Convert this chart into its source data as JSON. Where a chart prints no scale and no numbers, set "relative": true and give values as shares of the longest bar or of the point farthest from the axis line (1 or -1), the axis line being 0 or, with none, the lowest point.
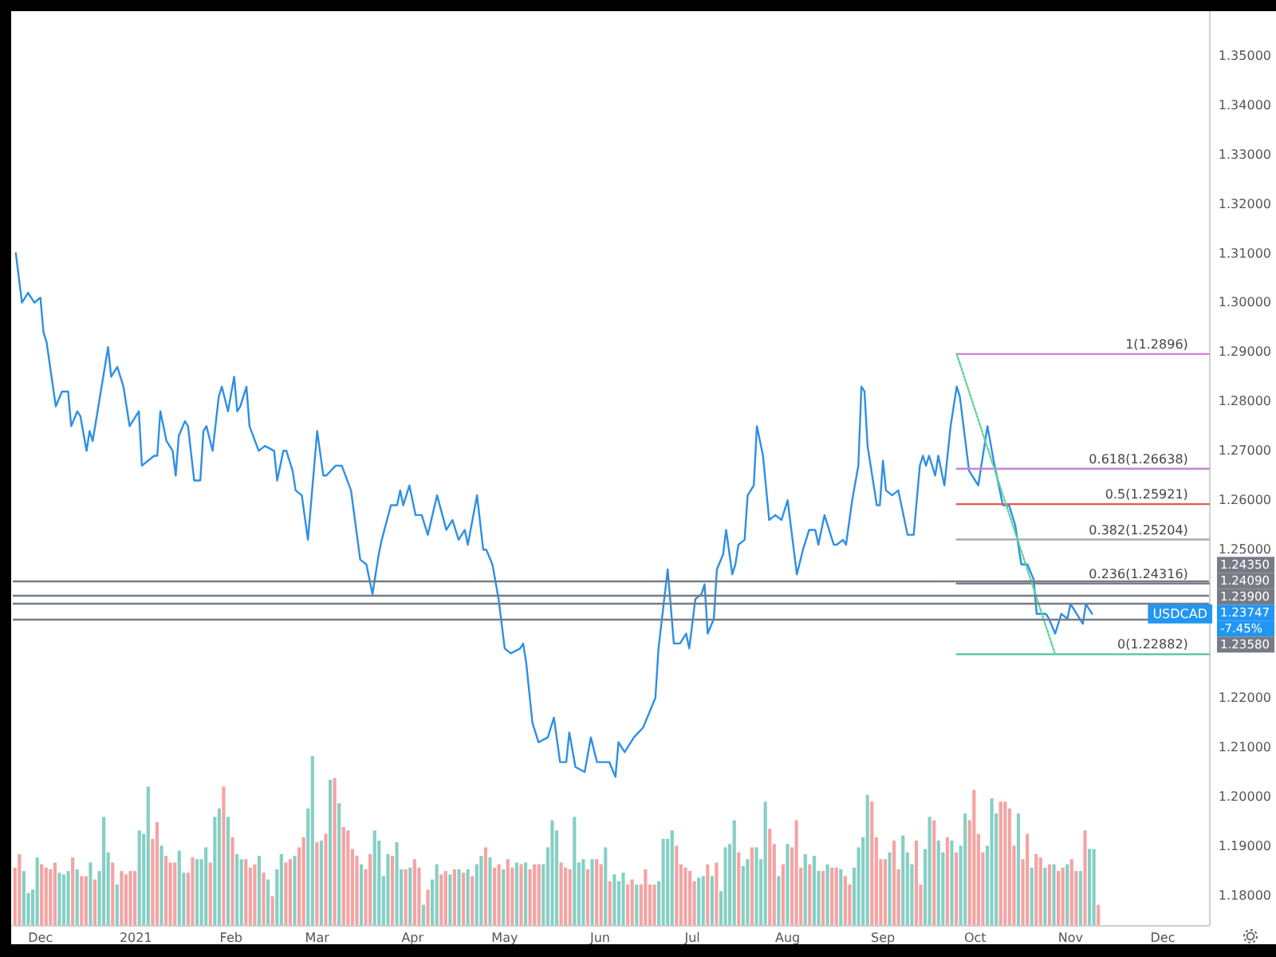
{
  "chart_data": [
    {
      "type": "line",
      "xlim": [
        "2020-11-22",
        "2021-12-16"
      ],
      "ylim": [
        1.174,
        1.359
      ],
      "xticks": [
        {
          "value": "2020-12-01",
          "label": "Dec"
        },
        {
          "value": "2021-01-01",
          "label": "2021"
        },
        {
          "value": "2021-02-01",
          "label": "Feb"
        },
        {
          "value": "2021-03-01",
          "label": "Mar"
        },
        {
          "value": "2021-04-01",
          "label": "Apr"
        },
        {
          "value": "2021-05-01",
          "label": "May"
        },
        {
          "value": "2021-06-01",
          "label": "Jun"
        },
        {
          "value": "2021-07-01",
          "label": "Jul"
        },
        {
          "value": "2021-08-01",
          "label": "Aug"
        },
        {
          "value": "2021-09-01",
          "label": "Sep"
        },
        {
          "value": "2021-10-01",
          "label": "Oct"
        },
        {
          "value": "2021-11-01",
          "label": "Nov"
        },
        {
          "value": "2021-12-01",
          "label": "Dec"
        }
      ],
      "yticks": [
        {
          "value": 1.18,
          "label": "1.18000"
        },
        {
          "value": 1.19,
          "label": "1.19000"
        },
        {
          "value": 1.2,
          "label": "1.20000"
        },
        {
          "value": 1.21,
          "label": "1.21000"
        },
        {
          "value": 1.22,
          "label": "1.22000"
        },
        {
          "value": 1.25,
          "label": "1.25000"
        },
        {
          "value": 1.26,
          "label": "1.26000"
        },
        {
          "value": 1.27,
          "label": "1.27000"
        },
        {
          "value": 1.28,
          "label": "1.28000"
        },
        {
          "value": 1.29,
          "label": "1.29000"
        },
        {
          "value": 1.3,
          "label": "1.30000"
        },
        {
          "value": 1.31,
          "label": "1.31000"
        },
        {
          "value": 1.32,
          "label": "1.32000"
        },
        {
          "value": 1.33,
          "label": "1.33000"
        },
        {
          "value": 1.34,
          "label": "1.34000"
        },
        {
          "value": 1.35,
          "label": "1.35000"
        }
      ],
      "marker": "none",
      "line_style": "solid",
      "series": [
        {
          "color": "#2e8fe6",
          "x": [
            "2020-11-23",
            "2020-11-25",
            "2020-11-27",
            "2020-11-29",
            "2020-12-01",
            "2020-12-02",
            "2020-12-03",
            "2020-12-06",
            "2020-12-08",
            "2020-12-10",
            "2020-12-11",
            "2020-12-13",
            "2020-12-14",
            "2020-12-16",
            "2020-12-17",
            "2020-12-18",
            "2020-12-23",
            "2020-12-24",
            "2020-12-26",
            "2020-12-28",
            "2020-12-30",
            "2021-01-02",
            "2021-01-03",
            "2021-01-07",
            "2021-01-08",
            "2021-01-09",
            "2021-01-11",
            "2021-01-13",
            "2021-01-14",
            "2021-01-15",
            "2021-01-17",
            "2021-01-18",
            "2021-01-20",
            "2021-01-22",
            "2021-01-23",
            "2021-01-24",
            "2021-01-26",
            "2021-01-28",
            "2021-01-29",
            "2021-01-31",
            "2021-02-02",
            "2021-02-03",
            "2021-02-04",
            "2021-02-06",
            "2021-02-07",
            "2021-02-10",
            "2021-02-12",
            "2021-02-15",
            "2021-02-16",
            "2021-02-18",
            "2021-02-19",
            "2021-02-21",
            "2021-02-22",
            "2021-02-24",
            "2021-02-26",
            "2021-03-01",
            "2021-03-03",
            "2021-03-04",
            "2021-03-07",
            "2021-03-09",
            "2021-03-12",
            "2021-03-15",
            "2021-03-17",
            "2021-03-19",
            "2021-03-21",
            "2021-03-22",
            "2021-03-25",
            "2021-03-27",
            "2021-03-28",
            "2021-03-29",
            "2021-03-31",
            "2021-04-02",
            "2021-04-04",
            "2021-04-06",
            "2021-04-09",
            "2021-04-12",
            "2021-04-14",
            "2021-04-16",
            "2021-04-18",
            "2021-04-19",
            "2021-04-22",
            "2021-04-24",
            "2021-04-25",
            "2021-04-27",
            "2021-04-29",
            "2021-05-01",
            "2021-05-03",
            "2021-05-06",
            "2021-05-07",
            "2021-05-08",
            "2021-05-10",
            "2021-05-12",
            "2021-05-15",
            "2021-05-17",
            "2021-05-19",
            "2021-05-21",
            "2021-05-22",
            "2021-05-24",
            "2021-05-27",
            "2021-05-29",
            "2021-05-31",
            "2021-06-03",
            "2021-06-04",
            "2021-06-06",
            "2021-06-07",
            "2021-06-09",
            "2021-06-12",
            "2021-06-15",
            "2021-06-19",
            "2021-06-20",
            "2021-06-23",
            "2021-06-25",
            "2021-06-27",
            "2021-06-29",
            "2021-06-30",
            "2021-07-02",
            "2021-07-04",
            "2021-07-05",
            "2021-07-06",
            "2021-07-08",
            "2021-07-09",
            "2021-07-11",
            "2021-07-12",
            "2021-07-14",
            "2021-07-15",
            "2021-07-16",
            "2021-07-18",
            "2021-07-19",
            "2021-07-21",
            "2021-07-22",
            "2021-07-24",
            "2021-07-26",
            "2021-07-28",
            "2021-07-30",
            "2021-08-01",
            "2021-08-04",
            "2021-08-06",
            "2021-08-08",
            "2021-08-10",
            "2021-08-11",
            "2021-08-13",
            "2021-08-16",
            "2021-08-17",
            "2021-08-19",
            "2021-08-20",
            "2021-08-22",
            "2021-08-24",
            "2021-08-25",
            "2021-08-26",
            "2021-08-27",
            "2021-08-30",
            "2021-08-31",
            "2021-09-01",
            "2021-09-02",
            "2021-09-04",
            "2021-09-06",
            "2021-09-09",
            "2021-09-11",
            "2021-09-13",
            "2021-09-14",
            "2021-09-15",
            "2021-09-16",
            "2021-09-18",
            "2021-09-19",
            "2021-09-21",
            "2021-09-23",
            "2021-09-25",
            "2021-09-26",
            "2021-09-29",
            "2021-09-30",
            "2021-10-02",
            "2021-10-05",
            "2021-10-07",
            "2021-10-10",
            "2021-10-12",
            "2021-10-14",
            "2021-10-16",
            "2021-10-18",
            "2021-10-20",
            "2021-10-21",
            "2021-10-24",
            "2021-10-25",
            "2021-10-27",
            "2021-10-29",
            "2021-10-31",
            "2021-11-01",
            "2021-11-03",
            "2021-11-05",
            "2021-11-06",
            "2021-11-08"
          ],
          "values": [
            1.31,
            1.3,
            1.302,
            1.3,
            1.301,
            1.294,
            1.292,
            1.279,
            1.282,
            1.282,
            1.275,
            1.278,
            1.277,
            1.27,
            1.274,
            1.272,
            1.291,
            1.285,
            1.287,
            1.283,
            1.275,
            1.278,
            1.267,
            1.269,
            1.269,
            1.278,
            1.272,
            1.27,
            1.265,
            1.273,
            1.276,
            1.275,
            1.264,
            1.264,
            1.274,
            1.275,
            1.27,
            1.281,
            1.283,
            1.278,
            1.285,
            1.278,
            1.279,
            1.283,
            1.275,
            1.27,
            1.271,
            1.27,
            1.264,
            1.27,
            1.27,
            1.266,
            1.262,
            1.261,
            1.252,
            1.274,
            1.265,
            1.265,
            1.267,
            1.267,
            1.262,
            1.248,
            1.247,
            1.241,
            1.249,
            1.252,
            1.259,
            1.259,
            1.262,
            1.259,
            1.263,
            1.257,
            1.257,
            1.253,
            1.261,
            1.254,
            1.256,
            1.252,
            1.254,
            1.251,
            1.261,
            1.25,
            1.25,
            1.247,
            1.24,
            1.23,
            1.229,
            1.23,
            1.231,
            1.227,
            1.215,
            1.211,
            1.212,
            1.216,
            1.207,
            1.207,
            1.213,
            1.206,
            1.205,
            1.212,
            1.207,
            1.207,
            1.207,
            1.204,
            1.211,
            1.209,
            1.212,
            1.214,
            1.22,
            1.23,
            1.246,
            1.231,
            1.231,
            1.233,
            1.23,
            1.24,
            1.241,
            1.243,
            1.233,
            1.236,
            1.246,
            1.249,
            1.254,
            1.245,
            1.247,
            1.251,
            1.252,
            1.261,
            1.263,
            1.275,
            1.269,
            1.256,
            1.257,
            1.256,
            1.26,
            1.245,
            1.25,
            1.254,
            1.254,
            1.251,
            1.257,
            1.251,
            1.251,
            1.252,
            1.251,
            1.26,
            1.267,
            1.283,
            1.282,
            1.271,
            1.259,
            1.259,
            1.268,
            1.262,
            1.261,
            1.262,
            1.253,
            1.253,
            1.267,
            1.269,
            1.267,
            1.269,
            1.265,
            1.269,
            1.263,
            1.275,
            1.283,
            1.281,
            1.266,
            1.265,
            1.263,
            1.275,
            1.268,
            1.259,
            1.259,
            1.255,
            1.247,
            1.247,
            1.244,
            1.237,
            1.237,
            1.236,
            1.233,
            1.237,
            1.236,
            1.239,
            1.237,
            1.235,
            1.239,
            1.237
          ]
        },
        {
          "name": "1(1.2896)",
          "color": "#d67fde",
          "x": [
            "2021-09-25",
            "2021-12-16"
          ],
          "values": [
            1.2896,
            1.2896
          ]
        },
        {
          "name": "0.618(1.26638)",
          "color": "#c585d6",
          "x": [
            "2021-09-25",
            "2021-12-16"
          ],
          "values": [
            1.26638,
            1.26638
          ]
        },
        {
          "name": "0.5(1.25921)",
          "color": "#f05454",
          "x": [
            "2021-09-25",
            "2021-12-16"
          ],
          "values": [
            1.25921,
            1.25921
          ]
        },
        {
          "name": "0.382(1.25204)",
          "color": "#a9a9b6",
          "x": [
            "2021-09-25",
            "2021-12-16"
          ],
          "values": [
            1.25204,
            1.25204
          ]
        },
        {
          "name": "0.236(1.24316)",
          "color": "#6f7380",
          "x": [
            "2021-09-25",
            "2021-12-16"
          ],
          "values": [
            1.24316,
            1.24316
          ]
        },
        {
          "name": "0(1.22882)",
          "color": "#50c59a",
          "x": [
            "2021-09-25",
            "2021-12-16"
          ],
          "values": [
            1.22882,
            1.22882
          ]
        },
        {
          "color": "#5fd39e",
          "line_style": "dotted",
          "x": [
            "2021-09-25",
            "2021-10-27"
          ],
          "values": [
            1.2896,
            1.22882
          ]
        }
      ],
      "ref_lines": [
        {
          "axis": "y",
          "value": 1.2435,
          "label": "1.24350",
          "color": "#787b86"
        },
        {
          "axis": "y",
          "value": 1.2409,
          "label": "1.24090",
          "color": "#787b86"
        },
        {
          "axis": "y",
          "value": 1.239,
          "label": "1.23900",
          "color": "#787b86"
        },
        {
          "axis": "y",
          "value": 1.2358,
          "label": "1.23580",
          "color": "#787b86"
        }
      ],
      "annotations": [
        "USDCAD",
        "1.23747",
        "-7.45%"
      ]
    },
    {
      "type": "bar",
      "relative": true,
      "tick_labels": false,
      "categories": [
        null,
        null,
        null,
        null,
        null,
        null,
        null,
        null,
        null,
        null,
        null,
        null,
        null,
        null,
        null,
        null,
        null,
        null,
        null,
        null,
        null,
        null,
        null,
        null,
        null,
        null,
        null,
        null,
        null,
        null,
        null,
        null,
        null,
        null,
        null,
        null,
        null,
        null,
        null,
        null,
        null,
        null,
        null,
        null,
        null,
        null,
        null,
        null,
        null,
        null,
        null,
        null,
        null,
        null,
        null,
        null,
        null,
        null,
        null,
        null,
        null,
        null,
        null,
        null,
        null,
        null,
        null,
        null,
        null,
        null,
        null,
        null,
        null,
        null,
        null,
        null,
        null,
        null,
        null,
        null,
        null,
        null,
        null,
        null,
        null,
        null,
        null,
        null,
        null,
        null,
        null,
        null,
        null,
        null,
        null,
        null,
        null,
        null,
        null,
        null,
        null,
        null,
        null,
        null,
        null,
        null,
        null,
        null,
        null,
        null,
        null,
        null,
        null,
        null,
        null,
        null,
        null,
        null,
        null,
        null,
        null,
        null,
        null,
        null,
        null,
        null,
        null,
        null,
        null,
        null,
        null,
        null,
        null,
        null,
        null,
        null,
        null,
        null,
        null,
        null,
        null,
        null,
        null,
        null,
        null,
        null,
        null,
        null,
        null,
        null,
        null,
        null,
        null,
        null,
        null,
        null,
        null,
        null,
        null,
        null,
        null,
        null,
        null,
        null,
        null,
        null,
        null,
        null,
        null,
        null,
        null,
        null,
        null,
        null,
        null,
        null,
        null,
        null,
        null,
        null,
        null,
        null,
        null,
        null,
        null,
        null,
        null,
        null,
        null,
        null,
        null,
        null,
        null,
        null,
        null,
        null,
        null,
        null,
        null,
        null,
        null,
        null,
        null,
        null,
        null,
        null,
        null,
        null,
        null,
        null,
        null,
        null,
        null,
        null,
        null,
        null,
        null,
        null,
        null,
        null,
        null,
        null,
        null,
        null,
        null,
        null,
        null,
        null,
        null,
        null,
        null,
        null,
        null,
        null,
        null,
        null,
        null,
        null,
        null,
        null,
        null,
        null,
        null,
        null,
        null
      ],
      "values": [
        0.34,
        0.42,
        0.32,
        0.19,
        0.21,
        0.4,
        0.36,
        0.34,
        0.33,
        0.37,
        0.31,
        0.3,
        0.32,
        0.4,
        0.33,
        0.29,
        0.29,
        0.37,
        0.27,
        0.32,
        0.64,
        0.43,
        0.37,
        0.24,
        0.32,
        0.3,
        0.32,
        0.32,
        0.56,
        0.54,
        0.82,
        0.51,
        0.61,
        0.47,
        0.41,
        0.37,
        0.37,
        0.44,
        0.31,
        0.31,
        0.4,
        0.39,
        0.39,
        0.46,
        0.37,
        0.64,
        0.69,
        0.82,
        0.64,
        0.52,
        0.42,
        0.39,
        0.39,
        0.34,
        0.36,
        0.41,
        0.31,
        0.27,
        0.17,
        0.33,
        0.42,
        0.37,
        0.39,
        0.41,
        0.46,
        0.52,
        0.69,
        1,
        0.49,
        0.5,
        0.54,
        0.86,
        0.87,
        0.72,
        0.58,
        0.56,
        0.45,
        0.41,
        0.36,
        0.33,
        0.42,
        0.56,
        0.5,
        0.29,
        0.42,
        0.41,
        0.49,
        0.33,
        0.33,
        0.34,
        0.39,
        0.34,
        0.12,
        0.21,
        0.27,
        0.36,
        0.3,
        0.32,
        0.3,
        0.33,
        0.33,
        0.31,
        0.33,
        0.29,
        0.36,
        0.41,
        0.46,
        0.4,
        0.34,
        0.36,
        0.33,
        0.39,
        0.34,
        0.37,
        0.36,
        0.37,
        0.33,
        0.36,
        0.36,
        0.36,
        0.46,
        0.62,
        0.56,
        0.37,
        0.34,
        0.33,
        0.64,
        0.37,
        0.39,
        0.33,
        0.39,
        0.39,
        0.36,
        0.46,
        0.26,
        0.3,
        0.26,
        0.31,
        0.24,
        0.27,
        0.24,
        0.24,
        0.33,
        0.24,
        0.24,
        0.26,
        0.51,
        0.51,
        0.56,
        0.47,
        0.36,
        0.34,
        0.32,
        0.26,
        0.28,
        0.29,
        0.36,
        0.29,
        0.37,
        0.2,
        0.46,
        0.48,
        0.62,
        0.43,
        0.35,
        0.39,
        0.46,
        0.46,
        0.39,
        0.73,
        0.57,
        0.48,
        0.29,
        0.36,
        0.48,
        0.46,
        0.62,
        0.34,
        0.42,
        0.36,
        0.41,
        0.32,
        0.32,
        0.36,
        0.34,
        0.34,
        0.33,
        0.29,
        0.24,
        0.34,
        0.46,
        0.52,
        0.77,
        0.73,
        0.52,
        0.39,
        0.39,
        0.43,
        0.5,
        0.33,
        0.53,
        0.43,
        0.36,
        0.5,
        0.24,
        0.45,
        0.64,
        0.62,
        0.5,
        0.43,
        0.52,
        0.5,
        0.43,
        0.47,
        0.66,
        0.62,
        0.8,
        0.54,
        0.43,
        0.47,
        0.75,
        0.66,
        0.73,
        0.73,
        0.69,
        0.47,
        0.66,
        0.39,
        0.54,
        0.34,
        0.42,
        0.4,
        0.34,
        0.36,
        0.36,
        0.32,
        0.34,
        0.36,
        0.39,
        0.32,
        0.32,
        0.56,
        0.45,
        0.45,
        0.12
      ],
      "colors": [
        "#f5a3a3",
        "#f5a3a3",
        "#86cfc4",
        "#86cfc4",
        "#86cfc4",
        "#86cfc4",
        "#f5a3a3",
        "#f5a3a3",
        "#f5a3a3",
        "#f5a3a3",
        "#86cfc4",
        "#86cfc4",
        "#86cfc4",
        "#f5a3a3",
        "#86cfc4",
        "#f5a3a3",
        "#f5a3a3",
        "#86cfc4",
        "#f5a3a3",
        "#86cfc4",
        "#86cfc4",
        "#86cfc4",
        "#f5a3a3",
        "#86cfc4",
        "#f5a3a3",
        "#f5a3a3",
        "#f5a3a3",
        "#f5a3a3",
        "#86cfc4",
        "#86cfc4",
        "#86cfc4",
        "#f5a3a3",
        "#f5a3a3",
        "#86cfc4",
        "#f5a3a3",
        "#f5a3a3",
        "#f5a3a3",
        "#86cfc4",
        "#86cfc4",
        "#f5a3a3",
        "#f5a3a3",
        "#86cfc4",
        "#86cfc4",
        "#86cfc4",
        "#f5a3a3",
        "#86cfc4",
        "#86cfc4",
        "#f5a3a3",
        "#86cfc4",
        "#f5a3a3",
        "#86cfc4",
        "#86cfc4",
        "#f5a3a3",
        "#f5a3a3",
        "#f5a3a3",
        "#86cfc4",
        "#f5a3a3",
        "#86cfc4",
        "#f5a3a3",
        "#86cfc4",
        "#86cfc4",
        "#f5a3a3",
        "#f5a3a3",
        "#86cfc4",
        "#f5a3a3",
        "#f5a3a3",
        "#86cfc4",
        "#86cfc4",
        "#f5a3a3",
        "#86cfc4",
        "#f5a3a3",
        "#86cfc4",
        "#f5a3a3",
        "#86cfc4",
        "#f5a3a3",
        "#f5a3a3",
        "#f5a3a3",
        "#f5a3a3",
        "#86cfc4",
        "#f5a3a3",
        "#f5a3a3",
        "#86cfc4",
        "#86cfc4",
        "#86cfc4",
        "#86cfc4",
        "#f5a3a3",
        "#86cfc4",
        "#86cfc4",
        "#f5a3a3",
        "#86cfc4",
        "#f5a3a3",
        "#f5a3a3",
        "#86cfc4",
        "#f5a3a3",
        "#86cfc4",
        "#86cfc4",
        "#f5a3a3",
        "#f5a3a3",
        "#86cfc4",
        "#f5a3a3",
        "#86cfc4",
        "#f5a3a3",
        "#86cfc4",
        "#f5a3a3",
        "#86cfc4",
        "#86cfc4",
        "#f5a3a3",
        "#86cfc4",
        "#f5a3a3",
        "#f5a3a3",
        "#86cfc4",
        "#f5a3a3",
        "#f5a3a3",
        "#86cfc4",
        "#f5a3a3",
        "#86cfc4",
        "#f5a3a3",
        "#f5a3a3",
        "#f5a3a3",
        "#86cfc4",
        "#86cfc4",
        "#86cfc4",
        "#86cfc4",
        "#f5a3a3",
        "#f5a3a3",
        "#f5a3a3",
        "#86cfc4",
        "#86cfc4",
        "#86cfc4",
        "#f5a3a3",
        "#86cfc4",
        "#f5a3a3",
        "#f5a3a3",
        "#86cfc4",
        "#f5a3a3",
        "#86cfc4",
        "#86cfc4",
        "#86cfc4",
        "#f5a3a3",
        "#f5a3a3",
        "#86cfc4",
        "#f5a3a3",
        "#f5a3a3",
        "#f5a3a3",
        "#f5a3a3",
        "#86cfc4",
        "#86cfc4",
        "#86cfc4",
        "#86cfc4",
        "#f5a3a3",
        "#f5a3a3",
        "#f5a3a3",
        "#f5a3a3",
        "#f5a3a3",
        "#86cfc4",
        "#86cfc4",
        "#f5a3a3",
        "#86cfc4",
        "#f5a3a3",
        "#86cfc4",
        "#86cfc4",
        "#86cfc4",
        "#86cfc4",
        "#f5a3a3",
        "#86cfc4",
        "#86cfc4",
        "#f5a3a3",
        "#86cfc4",
        "#86cfc4",
        "#86cfc4",
        "#f5a3a3",
        "#f5a3a3",
        "#86cfc4",
        "#f5a3a3",
        "#86cfc4",
        "#f5a3a3",
        "#f5a3a3",
        "#f5a3a3",
        "#86cfc4",
        "#f5a3a3",
        "#86cfc4",
        "#86cfc4",
        "#f5a3a3",
        "#86cfc4",
        "#f5a3a3",
        "#f5a3a3",
        "#86cfc4",
        "#f5a3a3",
        "#f5a3a3",
        "#86cfc4",
        "#86cfc4",
        "#86cfc4",
        "#86cfc4",
        "#f5a3a3",
        "#f5a3a3",
        "#f5a3a3",
        "#f5a3a3",
        "#86cfc4",
        "#f5a3a3",
        "#f5a3a3",
        "#86cfc4",
        "#86cfc4",
        "#86cfc4",
        "#f5a3a3",
        "#f5a3a3",
        "#86cfc4",
        "#86cfc4",
        "#f5a3a3",
        "#86cfc4",
        "#86cfc4",
        "#f5a3a3",
        "#86cfc4",
        "#f5a3a3",
        "#86cfc4",
        "#86cfc4",
        "#f5a3a3",
        "#f5a3a3",
        "#f5a3a3",
        "#f5a3a3",
        "#86cfc4",
        "#86cfc4",
        "#86cfc4",
        "#f5a3a3",
        "#f5a3a3",
        "#f5a3a3",
        "#f5a3a3",
        "#86cfc4",
        "#f5a3a3",
        "#f5a3a3",
        "#86cfc4",
        "#f5a3a3",
        "#f5a3a3",
        "#86cfc4",
        "#f5a3a3",
        "#86cfc4",
        "#f5a3a3",
        "#f5a3a3",
        "#86cfc4",
        "#f5a3a3",
        "#f5a3a3",
        "#86cfc4",
        "#f5a3a3",
        "#86cfc4",
        "#86cfc4",
        "#f5a3a3"
      ]
    }
  ]
}
